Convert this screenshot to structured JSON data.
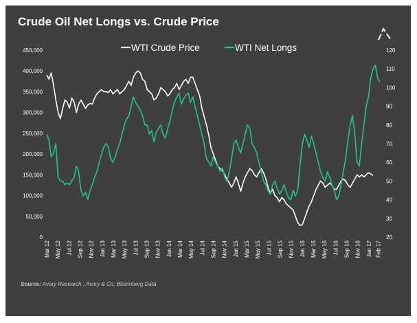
{
  "chart_data": {
    "type": "line",
    "title": "Crude Oil Net Longs vs. Crude Price",
    "colors": {
      "background": "#3f3f42",
      "wti_price": "#ffffff",
      "net_longs": "#1fc48e",
      "text": "#ffffff",
      "source": "#c8c8c8"
    },
    "legend_placement": "top-center",
    "grid": false,
    "y_left": {
      "range": [
        0,
        450000
      ],
      "ticks": [
        "0",
        "50,000",
        "100,000",
        "150,000",
        "200,000",
        "250,000",
        "300,000",
        "350,000",
        "400,000",
        "450,000"
      ]
    },
    "y_right": {
      "range": [
        20,
        120
      ],
      "ticks": [
        "20",
        "30",
        "40",
        "50",
        "60",
        "70",
        "80",
        "90",
        "100",
        "110",
        "120"
      ]
    },
    "x": {
      "range": [
        "Mar 12",
        "Feb 17"
      ],
      "ticks": [
        "Mar 12",
        "May 12",
        "Jul 12",
        "Sep 12",
        "Nov 12",
        "Jan 13",
        "Mar 13",
        "May 13",
        "Jul 13",
        "Sep 13",
        "Nov 13",
        "Jan 14",
        "Mar 14",
        "May 14",
        "Jul 14",
        "Sep 14",
        "Nov 14",
        "Jan 15",
        "Mar 15",
        "May 15",
        "Jul 15",
        "Sep 15",
        "Nov 15",
        "Jan 16",
        "Mar 16",
        "May 16",
        "Jul 16",
        "Sep 16",
        "Nov 16",
        "Jan 17",
        "Feb 17"
      ]
    },
    "series": [
      {
        "name": "WTI Crude Price",
        "axis": "left",
        "color": "#ffffff",
        "points": [
          [
            0,
            390000
          ],
          [
            0.5,
            380000
          ],
          [
            1,
            395000
          ],
          [
            1.5,
            365000
          ],
          [
            2,
            330000
          ],
          [
            2.5,
            300000
          ],
          [
            3,
            285000
          ],
          [
            3.5,
            310000
          ],
          [
            4,
            330000
          ],
          [
            4.5,
            325000
          ],
          [
            5,
            310000
          ],
          [
            5.5,
            335000
          ],
          [
            6,
            325000
          ],
          [
            6.5,
            300000
          ],
          [
            7,
            320000
          ],
          [
            7.5,
            330000
          ],
          [
            8,
            320000
          ],
          [
            8.5,
            310000
          ],
          [
            9,
            318000
          ],
          [
            9.5,
            322000
          ],
          [
            10,
            320000
          ],
          [
            10.5,
            335000
          ],
          [
            11,
            345000
          ],
          [
            11.5,
            350000
          ],
          [
            12,
            355000
          ],
          [
            12.5,
            350000
          ],
          [
            13,
            350000
          ],
          [
            13.5,
            348000
          ],
          [
            14,
            355000
          ],
          [
            14.5,
            345000
          ],
          [
            15,
            350000
          ],
          [
            15.5,
            355000
          ],
          [
            16,
            345000
          ],
          [
            16.5,
            350000
          ],
          [
            17,
            355000
          ],
          [
            17.5,
            365000
          ],
          [
            18,
            375000
          ],
          [
            18.5,
            365000
          ],
          [
            19,
            385000
          ],
          [
            19.5,
            395000
          ],
          [
            20,
            400000
          ],
          [
            20.5,
            395000
          ],
          [
            21,
            380000
          ],
          [
            21.5,
            375000
          ],
          [
            22,
            355000
          ],
          [
            22.5,
            350000
          ],
          [
            23,
            345000
          ],
          [
            23.5,
            330000
          ],
          [
            24,
            335000
          ],
          [
            24.5,
            345000
          ],
          [
            25,
            360000
          ],
          [
            25.5,
            355000
          ],
          [
            26,
            350000
          ],
          [
            26.5,
            340000
          ],
          [
            27,
            345000
          ],
          [
            27.5,
            355000
          ],
          [
            28,
            360000
          ],
          [
            28.5,
            370000
          ],
          [
            29,
            355000
          ],
          [
            29.5,
            365000
          ],
          [
            30,
            375000
          ],
          [
            30.5,
            380000
          ],
          [
            31,
            370000
          ],
          [
            31.5,
            385000
          ],
          [
            32,
            385000
          ],
          [
            32.5,
            370000
          ],
          [
            33,
            355000
          ],
          [
            33.5,
            340000
          ],
          [
            34,
            310000
          ],
          [
            34.5,
            290000
          ],
          [
            35,
            270000
          ],
          [
            35.5,
            245000
          ],
          [
            36,
            215000
          ],
          [
            36.5,
            200000
          ],
          [
            37,
            185000
          ],
          [
            37.5,
            170000
          ],
          [
            38,
            165000
          ],
          [
            38.5,
            160000
          ],
          [
            39,
            150000
          ],
          [
            39.5,
            140000
          ],
          [
            40,
            130000
          ],
          [
            40.5,
            120000
          ],
          [
            41,
            130000
          ],
          [
            41.5,
            145000
          ],
          [
            42,
            130000
          ],
          [
            42.5,
            110000
          ],
          [
            43,
            130000
          ],
          [
            43.5,
            145000
          ],
          [
            44,
            155000
          ],
          [
            44.5,
            165000
          ],
          [
            45,
            160000
          ],
          [
            45.5,
            150000
          ],
          [
            46,
            145000
          ],
          [
            46.5,
            155000
          ],
          [
            47,
            165000
          ],
          [
            47.5,
            155000
          ],
          [
            48,
            140000
          ],
          [
            48.5,
            120000
          ],
          [
            49,
            105000
          ],
          [
            49.5,
            115000
          ],
          [
            50,
            100000
          ],
          [
            50.5,
            95000
          ],
          [
            51,
            85000
          ],
          [
            51.5,
            95000
          ],
          [
            52,
            90000
          ],
          [
            52.5,
            80000
          ],
          [
            53,
            75000
          ],
          [
            53.5,
            70000
          ],
          [
            54,
            65000
          ],
          [
            54.5,
            50000
          ],
          [
            55,
            35000
          ],
          [
            55.5,
            28000
          ],
          [
            56,
            30000
          ],
          [
            56.5,
            45000
          ],
          [
            57,
            60000
          ],
          [
            57.5,
            75000
          ],
          [
            58,
            85000
          ],
          [
            58.5,
            100000
          ],
          [
            59,
            115000
          ],
          [
            59.5,
            125000
          ],
          [
            60,
            135000
          ],
          [
            60.5,
            130000
          ],
          [
            61,
            120000
          ],
          [
            61.5,
            125000
          ],
          [
            62,
            130000
          ],
          [
            62.5,
            125000
          ],
          [
            63,
            115000
          ],
          [
            63.5,
            115000
          ],
          [
            64,
            125000
          ],
          [
            64.5,
            135000
          ],
          [
            65,
            140000
          ],
          [
            65.5,
            135000
          ],
          [
            66,
            125000
          ],
          [
            66.5,
            120000
          ],
          [
            67,
            130000
          ],
          [
            67.5,
            140000
          ],
          [
            68,
            150000
          ],
          [
            68.5,
            145000
          ],
          [
            69,
            150000
          ],
          [
            69.5,
            145000
          ],
          [
            70,
            150000
          ],
          [
            70.5,
            155000
          ],
          [
            71,
            152000
          ],
          [
            71.5,
            148000
          ]
        ]
      },
      {
        "name": "WTI Net Longs",
        "axis": "right",
        "color": "#1fc48e",
        "points": [
          [
            0,
            75
          ],
          [
            0.5,
            72
          ],
          [
            1,
            63
          ],
          [
            1.5,
            65
          ],
          [
            2,
            70
          ],
          [
            2.5,
            52
          ],
          [
            3,
            50
          ],
          [
            3.5,
            50
          ],
          [
            4,
            48
          ],
          [
            4.5,
            49
          ],
          [
            5,
            48
          ],
          [
            5.5,
            50
          ],
          [
            6,
            52
          ],
          [
            6.5,
            58
          ],
          [
            7,
            55
          ],
          [
            7.5,
            45
          ],
          [
            8,
            42
          ],
          [
            8.5,
            44
          ],
          [
            9,
            40
          ],
          [
            9.5,
            45
          ],
          [
            10,
            48
          ],
          [
            10.5,
            52
          ],
          [
            11,
            55
          ],
          [
            11.5,
            60
          ],
          [
            12,
            64
          ],
          [
            12.5,
            68
          ],
          [
            13,
            70
          ],
          [
            13.5,
            68
          ],
          [
            14,
            62
          ],
          [
            14.5,
            60
          ],
          [
            15,
            63
          ],
          [
            15.5,
            67
          ],
          [
            16,
            70
          ],
          [
            16.5,
            75
          ],
          [
            17,
            80
          ],
          [
            17.5,
            83
          ],
          [
            18,
            85
          ],
          [
            18.5,
            90
          ],
          [
            19,
            95
          ],
          [
            19.5,
            92
          ],
          [
            20,
            90
          ],
          [
            20.5,
            88
          ],
          [
            21,
            85
          ],
          [
            21.5,
            80
          ],
          [
            22,
            80
          ],
          [
            22.5,
            75
          ],
          [
            23,
            77
          ],
          [
            23.5,
            71
          ],
          [
            24,
            76
          ],
          [
            24.5,
            78
          ],
          [
            25,
            80
          ],
          [
            25.5,
            75
          ],
          [
            26,
            73
          ],
          [
            26.5,
            78
          ],
          [
            27,
            82
          ],
          [
            27.5,
            88
          ],
          [
            28,
            92
          ],
          [
            28.5,
            95
          ],
          [
            29,
            97
          ],
          [
            29.5,
            91
          ],
          [
            30,
            94
          ],
          [
            30.5,
            96
          ],
          [
            31,
            97
          ],
          [
            31.5,
            92
          ],
          [
            32,
            95
          ],
          [
            32.5,
            90
          ],
          [
            33,
            85
          ],
          [
            33.5,
            80
          ],
          [
            34,
            75
          ],
          [
            34.5,
            70
          ],
          [
            35,
            62
          ],
          [
            35.5,
            60
          ],
          [
            36,
            58
          ],
          [
            36.5,
            63
          ],
          [
            37,
            60
          ],
          [
            37.5,
            58
          ],
          [
            38,
            55
          ],
          [
            38.5,
            57
          ],
          [
            39,
            52
          ],
          [
            39.5,
            50
          ],
          [
            40,
            55
          ],
          [
            40.5,
            62
          ],
          [
            41,
            70
          ],
          [
            41.5,
            72
          ],
          [
            42,
            68
          ],
          [
            42.5,
            65
          ],
          [
            43,
            70
          ],
          [
            43.5,
            75
          ],
          [
            44,
            80
          ],
          [
            44.5,
            78
          ],
          [
            45,
            70
          ],
          [
            45.5,
            68
          ],
          [
            46,
            65
          ],
          [
            46.5,
            60
          ],
          [
            47,
            55
          ],
          [
            47.5,
            50
          ],
          [
            48,
            48
          ],
          [
            48.5,
            45
          ],
          [
            49,
            43
          ],
          [
            49.5,
            48
          ],
          [
            50,
            50
          ],
          [
            50.5,
            46
          ],
          [
            51,
            43
          ],
          [
            51.5,
            45
          ],
          [
            52,
            48
          ],
          [
            52.5,
            44
          ],
          [
            53,
            41
          ],
          [
            53.5,
            40
          ],
          [
            54,
            45
          ],
          [
            54.5,
            42
          ],
          [
            55,
            45
          ],
          [
            55.5,
            58
          ],
          [
            56,
            70
          ],
          [
            56.5,
            75
          ],
          [
            57,
            72
          ],
          [
            57.5,
            68
          ],
          [
            58,
            74
          ],
          [
            58.5,
            70
          ],
          [
            59,
            65
          ],
          [
            59.5,
            60
          ],
          [
            60,
            55
          ],
          [
            60.5,
            52
          ],
          [
            61,
            50
          ],
          [
            61.5,
            55
          ],
          [
            62,
            52
          ],
          [
            62.5,
            48
          ],
          [
            63,
            45
          ],
          [
            63.5,
            40
          ],
          [
            64,
            42
          ],
          [
            64.5,
            48
          ],
          [
            65,
            55
          ],
          [
            65.5,
            62
          ],
          [
            66,
            72
          ],
          [
            66.5,
            80
          ],
          [
            67,
            85
          ],
          [
            67.5,
            75
          ],
          [
            68,
            60
          ],
          [
            68.5,
            58
          ],
          [
            69,
            70
          ],
          [
            69.5,
            80
          ],
          [
            70,
            90
          ],
          [
            70.5,
            95
          ],
          [
            71,
            105
          ],
          [
            71.5,
            110
          ],
          [
            72,
            112
          ],
          [
            72.5,
            105
          ],
          [
            73,
            103
          ]
        ]
      }
    ]
  },
  "source": {
    "label": "Source:",
    "text": "Avory Research ; Avory & Co, Bloomberg Data"
  }
}
